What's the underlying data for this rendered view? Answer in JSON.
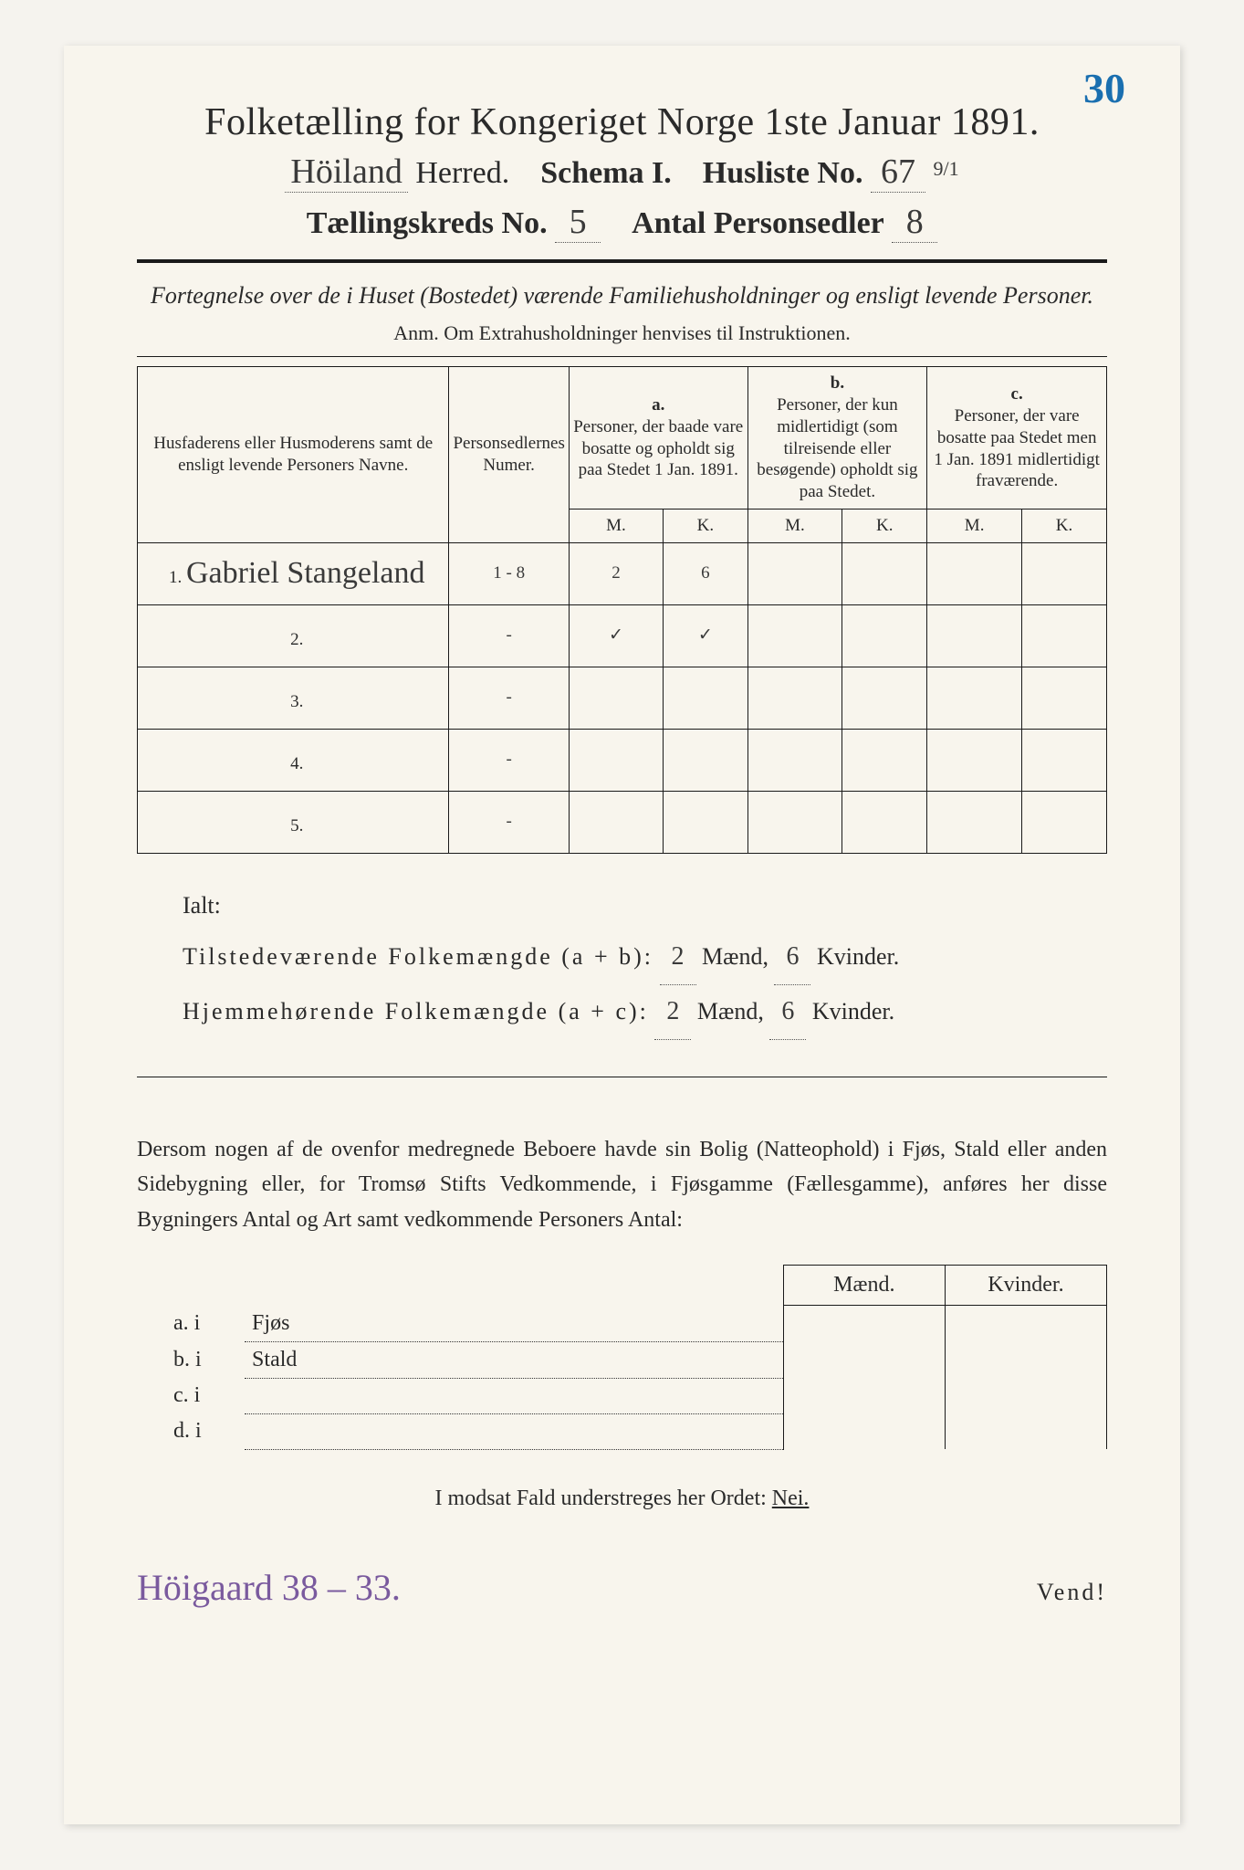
{
  "annotation_top_right": "30",
  "title": "Folketælling for Kongeriget Norge 1ste Januar 1891.",
  "header": {
    "herred_value": "Höiland",
    "herred_label": "Herred.",
    "schema_label": "Schema I.",
    "husliste_label": "Husliste No.",
    "husliste_value": "67",
    "husliste_annot": "9/1",
    "kreds_label": "Tællingskreds No.",
    "kreds_value": "5",
    "personsedler_label": "Antal Personsedler",
    "personsedler_value": "8"
  },
  "subtitle": "Fortegnelse over de i Huset (Bostedet) værende Familiehusholdninger og ensligt levende Personer.",
  "anm": "Anm. Om Extrahusholdninger henvises til Instruktionen.",
  "table": {
    "col1": "Husfaderens eller Husmoderens samt de ensligt levende Personers Navne.",
    "col2": "Personsedlernes Numer.",
    "col_a_head": "a.",
    "col_a": "Personer, der baade vare bosatte og opholdt sig paa Stedet 1 Jan. 1891.",
    "col_b_head": "b.",
    "col_b": "Personer, der kun midlertidigt (som tilreisende eller besøgende) opholdt sig paa Stedet.",
    "col_c_head": "c.",
    "col_c": "Personer, der vare bosatte paa Stedet men 1 Jan. 1891 midlertidigt fraværende.",
    "m": "M.",
    "k": "K.",
    "rows": [
      {
        "n": "1.",
        "name": "Gabriel Stangeland",
        "num": "1 - 8",
        "am": "2",
        "ak": "6",
        "bm": "",
        "bk": "",
        "cm": "",
        "ck": ""
      },
      {
        "n": "2.",
        "name": "",
        "num": "-",
        "am": "✓",
        "ak": "✓",
        "bm": "",
        "bk": "",
        "cm": "",
        "ck": ""
      },
      {
        "n": "3.",
        "name": "",
        "num": "-",
        "am": "",
        "ak": "",
        "bm": "",
        "bk": "",
        "cm": "",
        "ck": ""
      },
      {
        "n": "4.",
        "name": "",
        "num": "-",
        "am": "",
        "ak": "",
        "bm": "",
        "bk": "",
        "cm": "",
        "ck": ""
      },
      {
        "n": "5.",
        "name": "",
        "num": "-",
        "am": "",
        "ak": "",
        "bm": "",
        "bk": "",
        "cm": "",
        "ck": ""
      }
    ]
  },
  "totals": {
    "ialt": "Ialt:",
    "line1_label": "Tilstedeværende Folkemængde (a + b):",
    "line1_m": "2",
    "line1_k": "6",
    "line2_label": "Hjemmehørende Folkemængde (a + c):",
    "line2_m": "2",
    "line2_k": "6",
    "maend": "Mænd,",
    "kvinder": "Kvinder."
  },
  "body_text": {
    "p": "Dersom nogen af de ovenfor medregnede Beboere havde sin Bolig (Natteophold) i Fjøs, Stald eller anden Sidebygning eller, for Tromsø Stifts Vedkommende, i Fjøsgamme (Fællesgamme), anføres her disse Bygningers Antal og Art samt vedkommende Personers Antal:"
  },
  "sub_table": {
    "maend": "Mænd.",
    "kvinder": "Kvinder.",
    "rows": [
      {
        "label": "a.  i",
        "type": "Fjøs"
      },
      {
        "label": "b.  i",
        "type": "Stald"
      },
      {
        "label": "c.  i",
        "type": ""
      },
      {
        "label": "d.  i",
        "type": ""
      }
    ]
  },
  "nei_line": "I modsat Fald understreges her Ordet: ",
  "nei": "Nei.",
  "footer": {
    "handwritten": "Höigaard 38 – 33.",
    "vend": "Vend!"
  }
}
